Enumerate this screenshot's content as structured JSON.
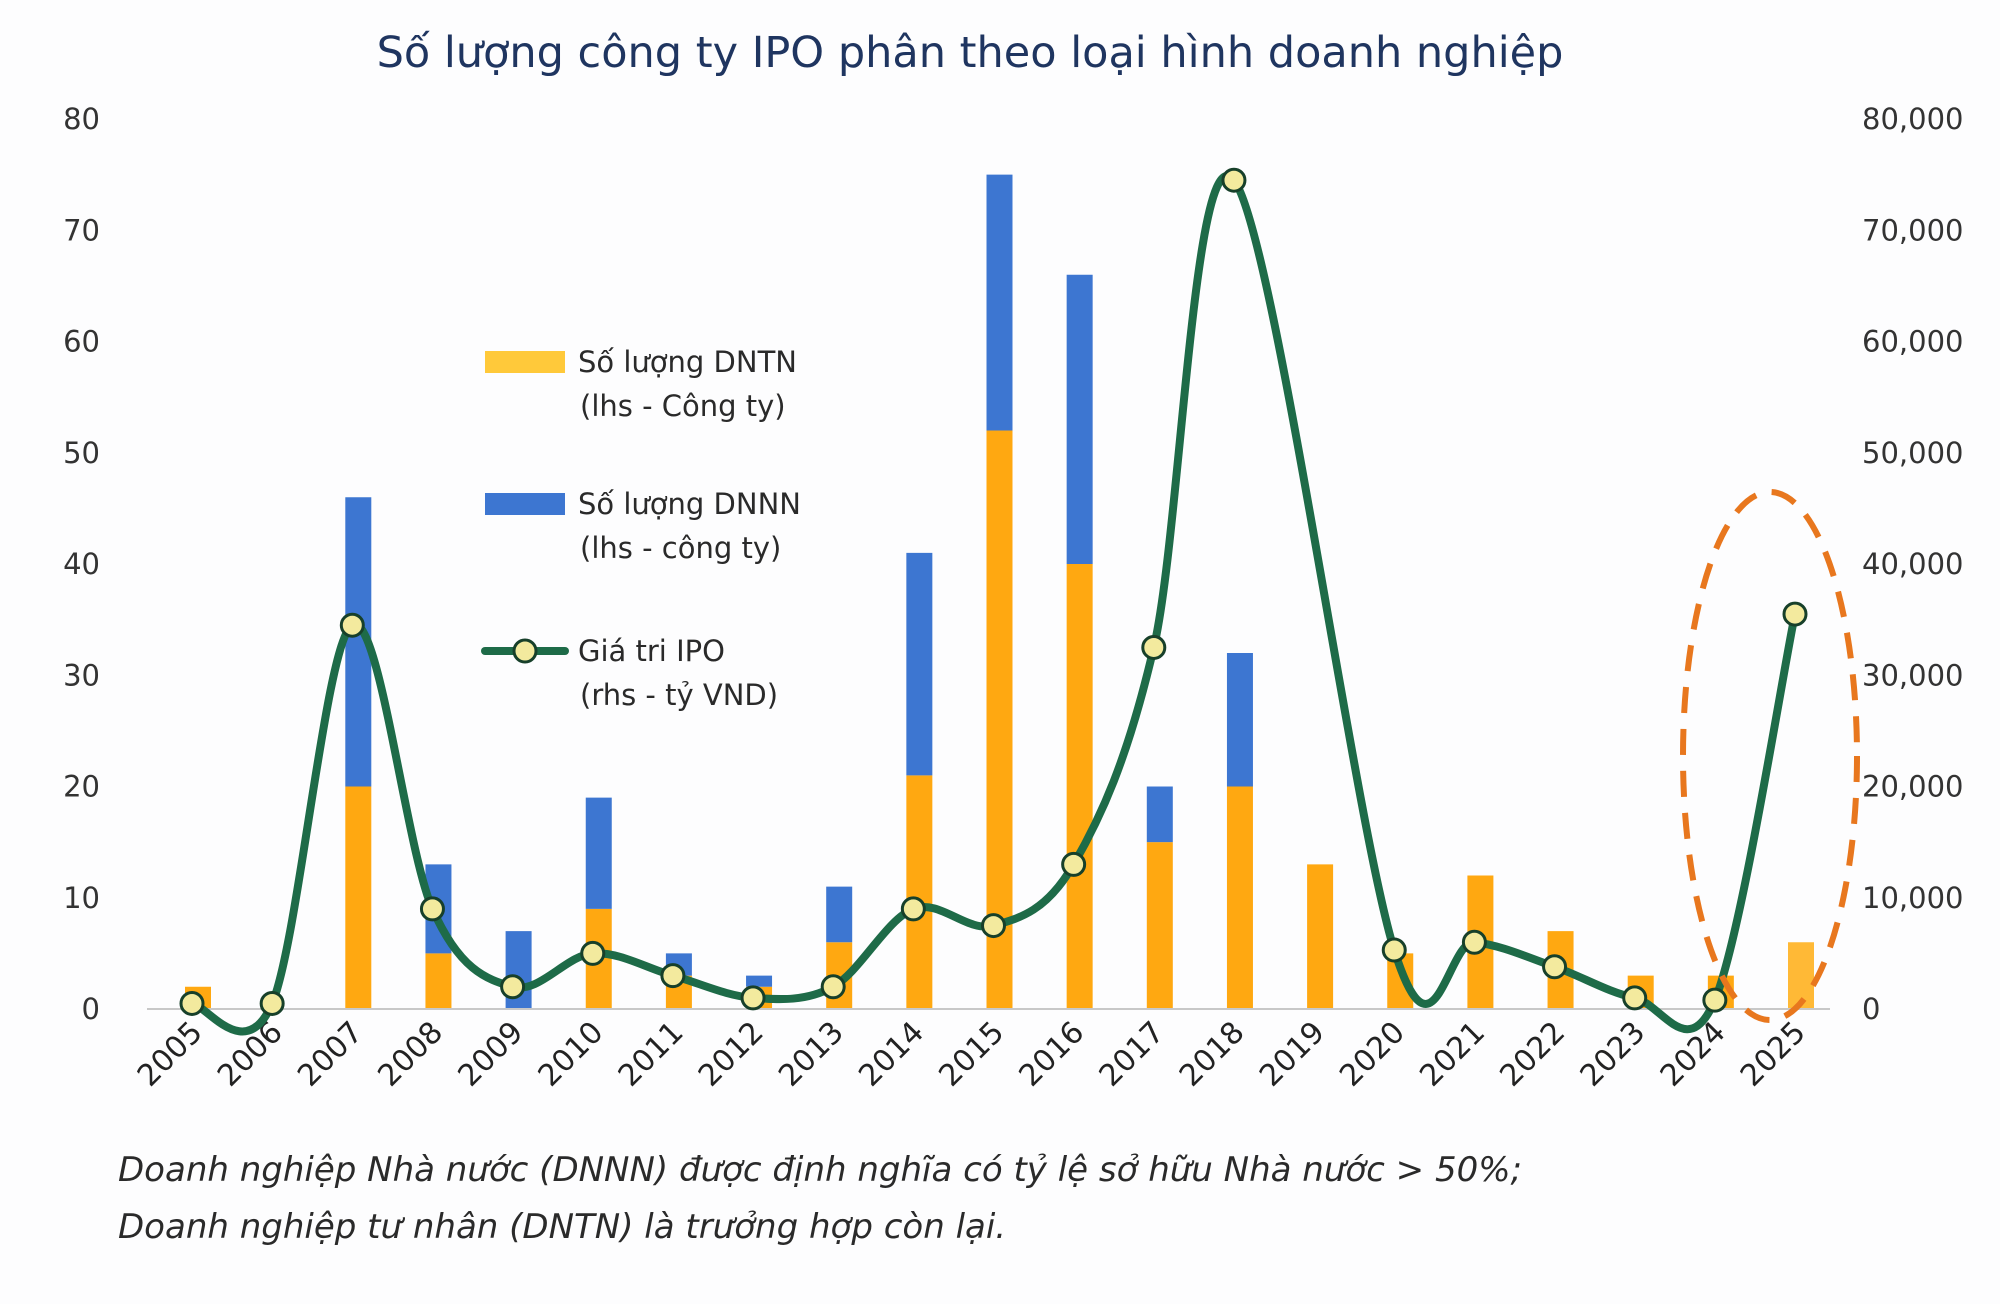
{
  "chart_data": {
    "type": "bar",
    "title": "Số lượng công ty IPO phân theo loại hình doanh nghiệp",
    "categories": [
      "2005",
      "2006",
      "2007",
      "2008",
      "2009",
      "2010",
      "2011",
      "2012",
      "2013",
      "2014",
      "2015",
      "2016",
      "2017",
      "2018",
      "2019",
      "2020",
      "2021",
      "2022",
      "2023",
      "2024",
      "2025"
    ],
    "series": [
      {
        "name": "Số lượng DNTN",
        "name_line2": "(lhs - Công ty)",
        "kind": "stacked-bar",
        "axis": "left",
        "color": "#FFA811",
        "values": [
          2,
          0,
          20,
          5,
          0,
          9,
          3,
          2,
          6,
          21,
          52,
          40,
          15,
          20,
          13,
          5,
          12,
          7,
          3,
          3,
          6
        ]
      },
      {
        "name": "Số lượng DNNN",
        "name_line2": "(lhs - công ty)",
        "kind": "stacked-bar",
        "axis": "left",
        "color": "#3D76D1",
        "values": [
          0,
          0,
          26,
          8,
          7,
          10,
          2,
          1,
          5,
          20,
          23,
          26,
          5,
          12,
          0,
          0,
          0,
          0,
          0,
          0,
          0
        ]
      },
      {
        "name": "Giá tri IPO",
        "name_line2": "(rhs - tỷ VND)",
        "kind": "smooth-line-markers",
        "axis": "right",
        "color": "#1E6B48",
        "marker_color": "#F3EA9E",
        "values": [
          500,
          500,
          34500,
          9000,
          2000,
          5000,
          3000,
          1000,
          2000,
          9000,
          7500,
          13000,
          32500,
          74500,
          null,
          5300,
          6000,
          3800,
          1000,
          800,
          35500
        ]
      }
    ],
    "left_axis": {
      "ylim": [
        0,
        80
      ],
      "ticks": [
        "0",
        "10",
        "20",
        "30",
        "40",
        "50",
        "60",
        "70",
        "80"
      ]
    },
    "right_axis": {
      "ylim": [
        0,
        80000
      ],
      "ticks": [
        "0",
        "10,000",
        "20,000",
        "30,000",
        "40,000",
        "50,000",
        "60,000",
        "70,000",
        "80,000"
      ]
    },
    "grid": false,
    "legend_placement": "upper-left inside",
    "highlight": {
      "category": "2025",
      "shape": "dashed-ellipse",
      "color": "#E8771E"
    },
    "x_tick_rotation": "-45deg"
  },
  "caption": {
    "line1": "Doanh nghiệp Nhà nước (DNNN) được định nghĩa có tỷ lệ sở hữu Nhà nước > 50%;",
    "line2": "Doanh nghiệp tư nhân (DNTN) là trưởng hợp còn lại."
  }
}
